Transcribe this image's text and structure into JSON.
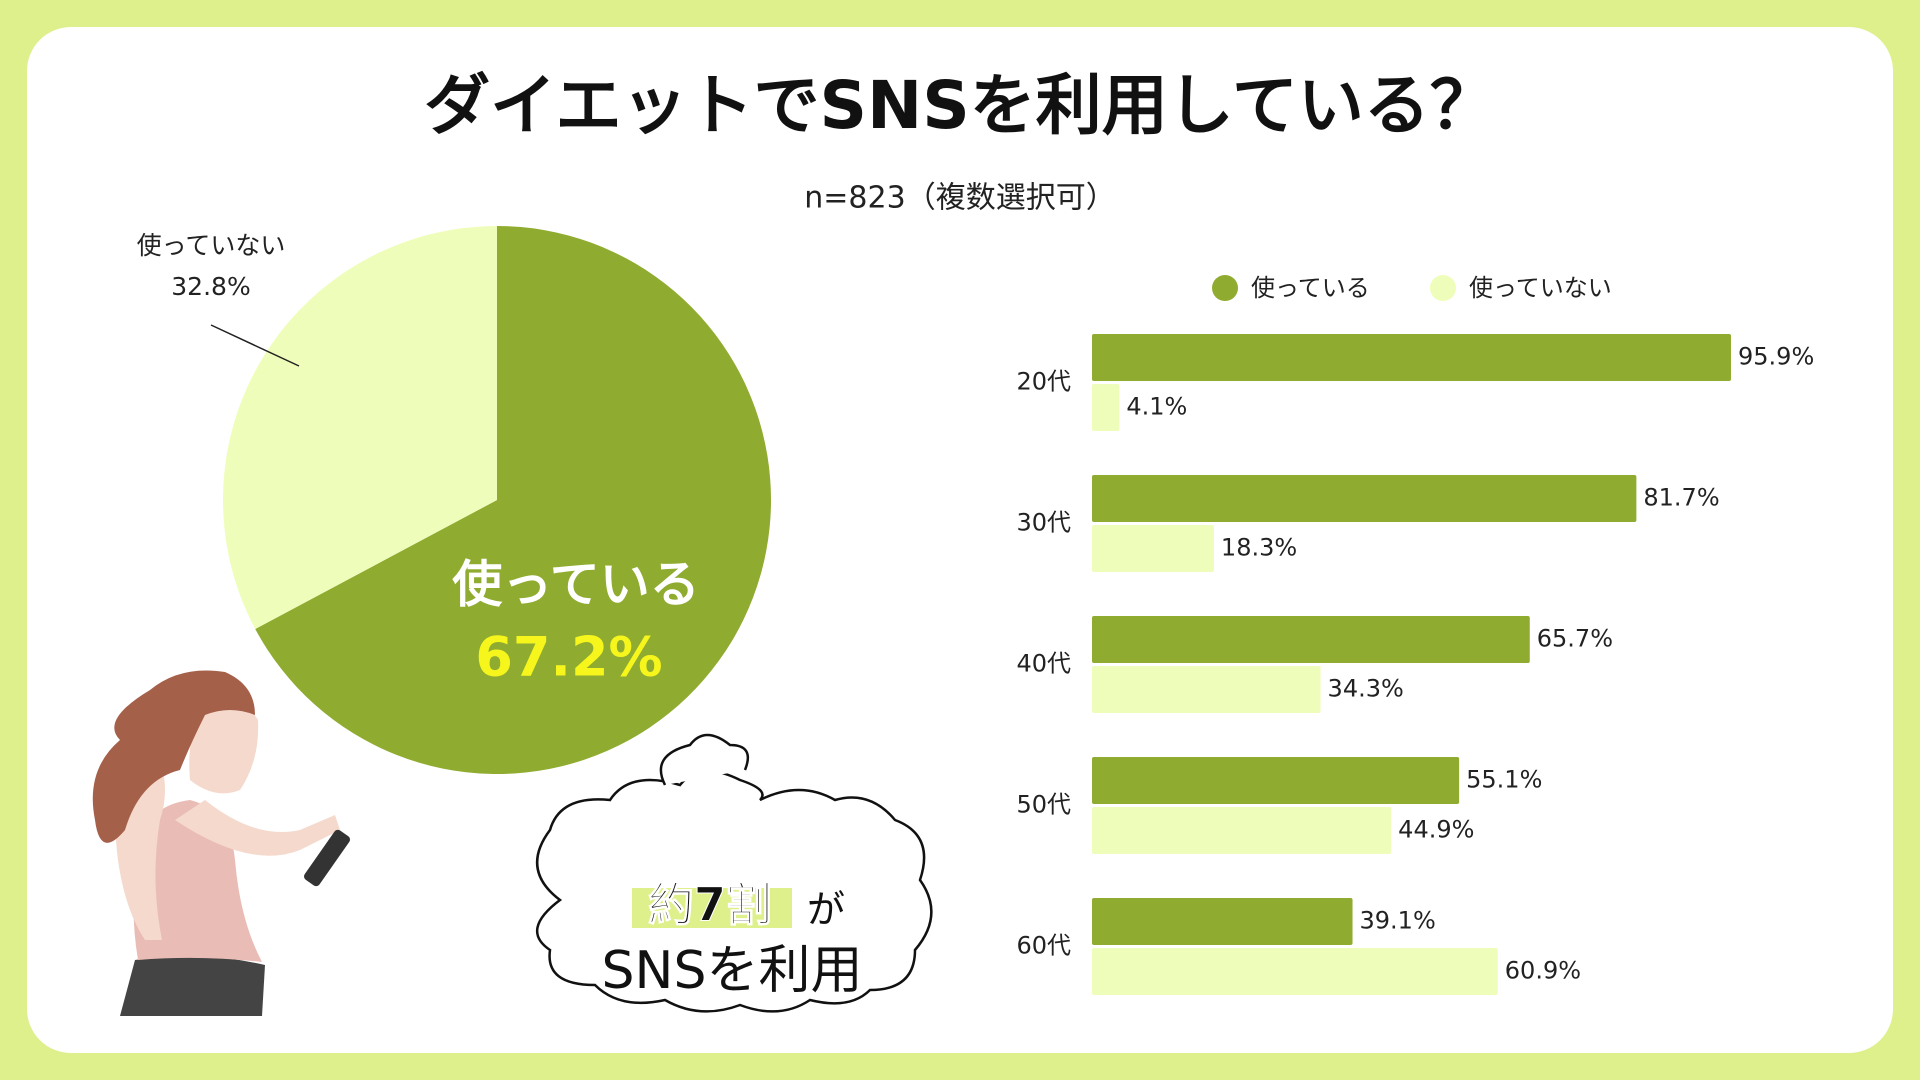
{
  "header": {
    "title": "ダイエットでSNSを利用している？",
    "subtitle": "n=823（複数選択可）"
  },
  "callout": {
    "emphasis": "約7割",
    "particle": "が",
    "line2": "SNSを利用"
  },
  "chart_data": [
    {
      "type": "pie",
      "categories": [
        "使っている",
        "使っていない"
      ],
      "values": [
        67.2,
        32.8
      ],
      "value_labels": [
        "67.2%",
        "32.8%"
      ],
      "colors": [
        "#8fab30",
        "#effdba"
      ]
    },
    {
      "type": "hbar",
      "categories": [
        "20代",
        "30代",
        "40代",
        "50代",
        "60代"
      ],
      "series": [
        {
          "name": "使っている",
          "color": "#8fab30",
          "values": [
            95.9,
            81.7,
            65.7,
            55.1,
            39.1
          ],
          "value_labels": [
            "95.9%",
            "81.7%",
            "65.7%",
            "55.1%",
            "39.1%"
          ]
        },
        {
          "name": "使っていない",
          "color": "#effdba",
          "values": [
            4.1,
            18.3,
            34.3,
            44.9,
            60.9
          ],
          "value_labels": [
            "4.1%",
            "18.3%",
            "34.3%",
            "44.9%",
            "60.9%"
          ]
        }
      ]
    }
  ]
}
